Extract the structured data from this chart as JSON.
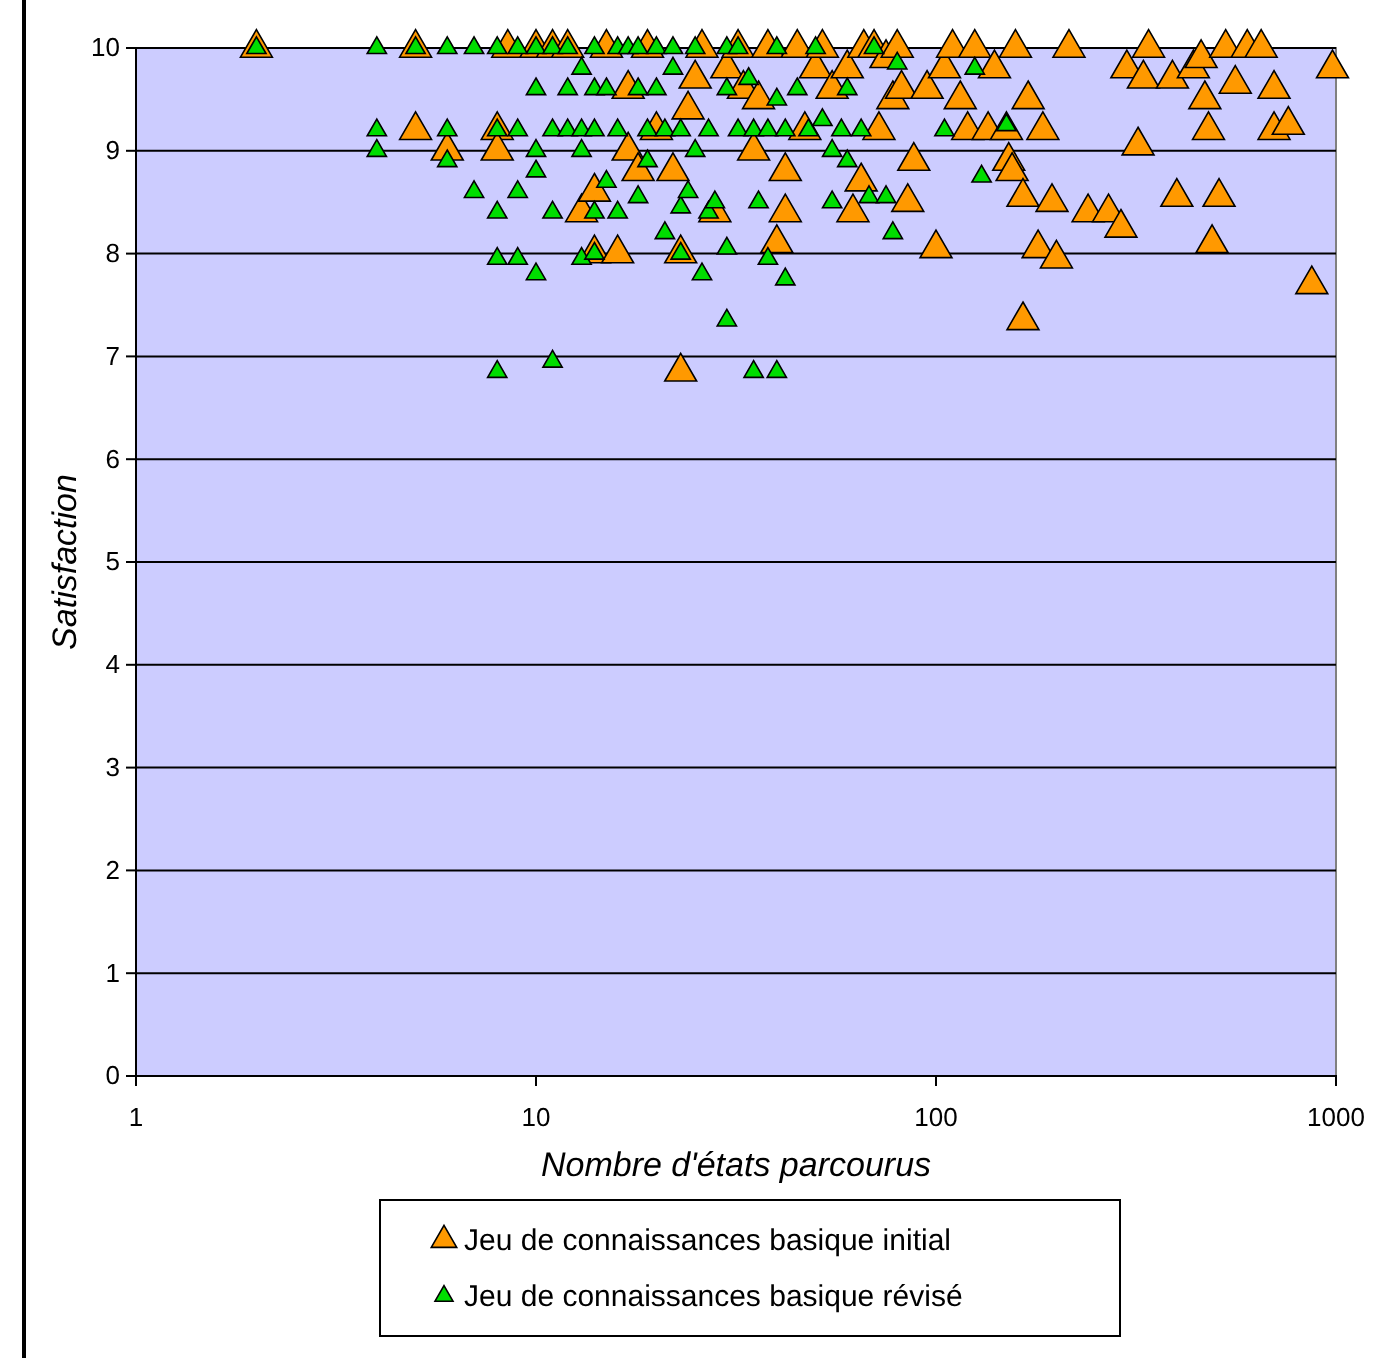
{
  "chart_data": {
    "type": "scatter",
    "xlabel": "Nombre d'états parcourus",
    "ylabel": "Satisfaction",
    "log": "x",
    "xlim": [
      1,
      1000
    ],
    "xticks": [
      1,
      10,
      100,
      1000
    ],
    "ylim": [
      0,
      10
    ],
    "yticks": [
      0,
      1,
      2,
      3,
      4,
      5,
      6,
      7,
      8,
      9,
      10
    ],
    "grid": "y",
    "legend": "bottom",
    "marker": "triangle",
    "series": [
      {
        "name": "Jeu de connaissances basique initial",
        "color": "#ff9900",
        "x": [
          2,
          5,
          5,
          6,
          8,
          8,
          8.5,
          10,
          11,
          12,
          13,
          14,
          14,
          15,
          16,
          17,
          17,
          18,
          19,
          20,
          22,
          23,
          23,
          24,
          25,
          26,
          28,
          30,
          32,
          33,
          35,
          36,
          38,
          40,
          42,
          42,
          45,
          47,
          50,
          52,
          55,
          60,
          62,
          65,
          66,
          70,
          72,
          75,
          78,
          80,
          82,
          85,
          88,
          95,
          100,
          105,
          110,
          115,
          120,
          125,
          135,
          140,
          150,
          152,
          155,
          158,
          165,
          165,
          170,
          180,
          185,
          195,
          200,
          215,
          240,
          270,
          290,
          300,
          320,
          330,
          340,
          390,
          400,
          440,
          460,
          470,
          480,
          490,
          510,
          530,
          560,
          600,
          650,
          700,
          700,
          760,
          870,
          980
        ],
        "values": [
          10,
          10,
          9.2,
          9,
          9.2,
          9,
          10,
          10,
          10,
          10,
          8.4,
          8.6,
          8,
          10,
          8,
          9,
          9.6,
          8.8,
          10,
          9.2,
          8.8,
          8,
          6.85,
          9.4,
          9.7,
          10,
          8.4,
          9.8,
          10,
          9.6,
          9,
          9.5,
          10,
          8.1,
          8.8,
          8.4,
          10,
          9.2,
          9.8,
          10,
          9.6,
          9.8,
          8.4,
          8.7,
          10,
          10,
          9.2,
          9.9,
          9.5,
          10,
          9.6,
          8.5,
          8.9,
          9.6,
          8.05,
          9.8,
          10,
          9.5,
          9.2,
          10,
          9.2,
          9.8,
          9.2,
          8.9,
          8.8,
          10,
          7.35,
          8.55,
          9.5,
          8.05,
          9.2,
          8.5,
          7.95,
          10,
          8.4,
          8.4,
          8.25,
          9.8,
          9.05,
          9.7,
          10,
          9.7,
          8.55,
          9.8,
          9.9,
          9.5,
          9.2,
          8.1,
          8.55,
          10,
          9.65,
          10,
          10,
          9.6,
          9.2,
          9.25,
          7.7,
          9.8
        ]
      },
      {
        "name": "Jeu de connaissances basique révisé",
        "color": "#00dd00",
        "x": [
          2,
          4,
          4,
          4,
          5,
          6,
          6,
          6,
          7,
          7,
          8,
          8,
          8,
          8,
          8,
          9,
          9,
          9,
          9,
          10,
          10,
          10,
          10,
          10,
          11,
          11,
          11,
          11,
          12,
          12,
          12,
          13,
          13,
          13,
          13,
          14,
          14,
          14,
          14,
          14,
          15,
          15,
          16,
          16,
          16,
          17,
          18,
          18,
          18,
          19,
          19,
          20,
          20,
          21,
          21,
          22,
          22,
          23,
          23,
          23,
          24,
          25,
          25,
          26,
          27,
          27,
          28,
          30,
          30,
          30,
          30,
          32,
          32,
          34,
          35,
          35,
          36,
          38,
          38,
          40,
          40,
          40,
          42,
          42,
          45,
          48,
          50,
          52,
          55,
          55,
          58,
          60,
          60,
          65,
          68,
          70,
          75,
          78,
          80,
          105,
          125,
          130,
          150
        ],
        "values": [
          10,
          10,
          9.2,
          9,
          10,
          10,
          9.2,
          8.9,
          10,
          8.6,
          10,
          9.2,
          8.4,
          7.95,
          6.85,
          10,
          9.2,
          8.6,
          7.95,
          10,
          9.6,
          9,
          8.8,
          7.8,
          10,
          9.2,
          8.4,
          6.95,
          10,
          9.6,
          9.2,
          9.8,
          9.2,
          9,
          7.95,
          10,
          9.6,
          9.2,
          8.4,
          8,
          9.6,
          8.7,
          10,
          9.2,
          8.4,
          10,
          10,
          9.6,
          8.55,
          9.2,
          8.9,
          10,
          9.6,
          9.2,
          8.2,
          10,
          9.8,
          9.2,
          8.45,
          8,
          8.6,
          10,
          9,
          7.8,
          9.2,
          8.4,
          8.5,
          10,
          9.6,
          8.05,
          7.35,
          10,
          9.2,
          9.7,
          9.2,
          6.85,
          8.5,
          9.2,
          7.95,
          10,
          9.5,
          6.85,
          9.2,
          7.75,
          9.6,
          9.2,
          10,
          9.3,
          9,
          8.5,
          9.2,
          9.6,
          8.9,
          9.2,
          8.55,
          10,
          8.55,
          8.2,
          9.85,
          9.2,
          9.8,
          8.75,
          9.25
        ]
      }
    ]
  }
}
